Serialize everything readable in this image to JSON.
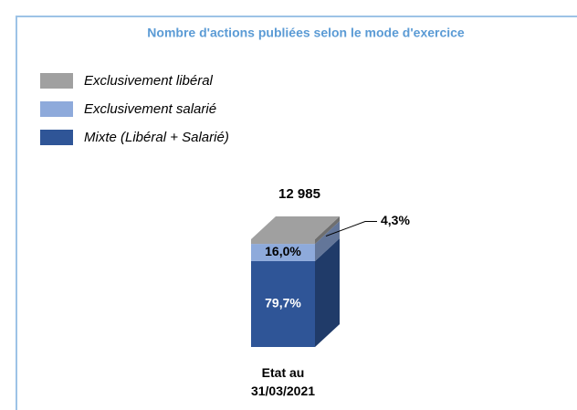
{
  "chart_data": {
    "type": "stacked-bar-3d",
    "title": "Nombre d'actions publiées selon le mode d'exercice",
    "categories": [
      "Etat au 31/03/2021"
    ],
    "series": [
      {
        "name": "Mixte (Libéral + Salarié)",
        "color": "#2f5597",
        "values": [
          79.7
        ],
        "value_labels": [
          "79,7%"
        ]
      },
      {
        "name": "Exclusivement salarié",
        "color": "#8eaadb",
        "values": [
          16.0
        ],
        "value_labels": [
          "16,0%"
        ]
      },
      {
        "name": "Exclusivement libéral",
        "color": "#a0a0a0",
        "values": [
          4.3
        ],
        "value_labels": [
          "4,3%"
        ]
      }
    ],
    "total": {
      "value": 12985,
      "label": "12 985"
    },
    "ylim": [
      0,
      100
    ]
  }
}
